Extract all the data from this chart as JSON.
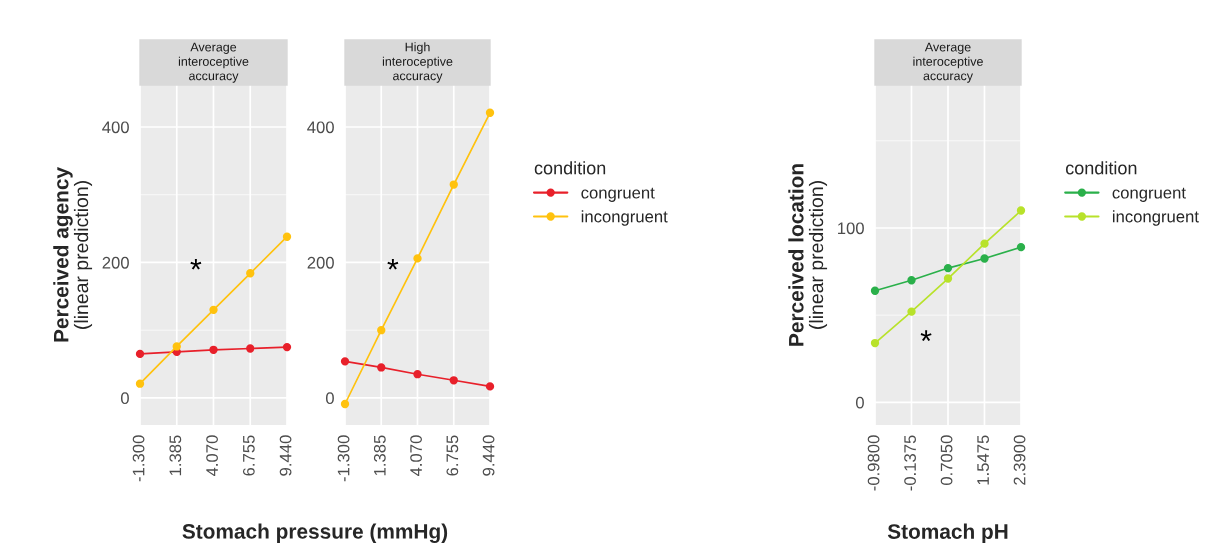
{
  "chart_data": [
    {
      "type": "line",
      "title": "Average\ninteroceptive\naccuracy",
      "xlabel": "Stomach pressure (mmHg)",
      "ylabel": "Perceived agency\n(linear prediction)",
      "x": [
        -1.3,
        1.385,
        4.07,
        6.755,
        9.44
      ],
      "xlim": [
        -1.3,
        9.44
      ],
      "xticks": [
        {
          "value": -1.3,
          "label": "-1.300"
        },
        {
          "value": 1.385,
          "label": "1.385"
        },
        {
          "value": 4.07,
          "label": "4.070"
        },
        {
          "value": 6.755,
          "label": "6.755"
        },
        {
          "value": 9.44,
          "label": "9.440"
        }
      ],
      "ylim": [
        -40,
        462
      ],
      "yticks": [
        0,
        {
          "value": 100,
          "label": null
        },
        200,
        {
          "value": 300,
          "label": null
        },
        400
      ],
      "grid": true,
      "marker": "circle",
      "line_style": "solid",
      "series": [
        {
          "color": "#e8202a",
          "values": [
            65,
            68,
            71,
            73,
            75
          ]
        },
        {
          "color": "#ffc20e",
          "values": [
            21,
            76,
            130,
            184,
            238
          ]
        }
      ],
      "annotations": [
        "*"
      ]
    },
    {
      "type": "line",
      "title": "High\ninteroceptive\naccuracy",
      "x": [
        -1.3,
        1.385,
        4.07,
        6.755,
        9.44
      ],
      "xlim": [
        -1.3,
        9.44
      ],
      "xticks": [
        {
          "value": -1.3,
          "label": "-1.300"
        },
        {
          "value": 1.385,
          "label": "1.385"
        },
        {
          "value": 4.07,
          "label": "4.070"
        },
        {
          "value": 6.755,
          "label": "6.755"
        },
        {
          "value": 9.44,
          "label": "9.440"
        }
      ],
      "ylim": [
        -40,
        462
      ],
      "yticks": [
        0,
        {
          "value": 100,
          "label": null
        },
        200,
        {
          "value": 300,
          "label": null
        },
        400
      ],
      "grid": true,
      "marker": "circle",
      "line_style": "solid",
      "legend": "right",
      "legend_title": "condition",
      "series": [
        {
          "name": "congruent",
          "color": "#e8202a",
          "values": [
            54,
            45,
            35,
            26,
            17
          ]
        },
        {
          "name": "incongruent",
          "color": "#ffc20e",
          "values": [
            -9,
            100,
            206,
            315,
            421
          ]
        }
      ],
      "annotations": [
        "*"
      ]
    },
    {
      "type": "line",
      "title": "Average\ninteroceptive\naccuracy",
      "xlabel": "Stomach pH",
      "ylabel": "Perceived location\n(linear prediction)",
      "x": [
        -0.98,
        -0.1375,
        0.705,
        1.5475,
        2.39
      ],
      "xlim": [
        -0.98,
        2.39
      ],
      "xticks": [
        {
          "value": -0.98,
          "label": "-0.9800"
        },
        {
          "value": -0.1375,
          "label": "-0.1375"
        },
        {
          "value": 0.705,
          "label": "0.7050"
        },
        {
          "value": 1.5475,
          "label": "1.5475"
        },
        {
          "value": 2.39,
          "label": "2.3900"
        }
      ],
      "ylim": [
        -13,
        182
      ],
      "yticks": [
        0,
        {
          "value": 50,
          "label": null
        },
        100,
        {
          "value": 150,
          "label": null
        }
      ],
      "grid": true,
      "marker": "circle",
      "line_style": "solid",
      "legend": "right",
      "legend_title": "condition",
      "series": [
        {
          "name": "congruent",
          "color": "#2ab04a",
          "values": [
            64,
            70,
            77,
            82.5,
            89
          ]
        },
        {
          "name": "incongruent",
          "color": "#b8e22a",
          "values": [
            34,
            52,
            71,
            91,
            110
          ]
        }
      ],
      "annotations": [
        "*"
      ]
    }
  ]
}
